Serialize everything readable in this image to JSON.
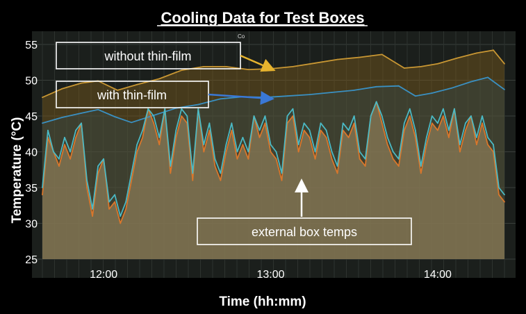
{
  "chart_data": {
    "type": "area",
    "title": "Cooling Data for Test Boxes",
    "xlabel": "Time (hh:mm)",
    "ylabel": "Temperature (°C)",
    "x_ticks": [
      "12:00",
      "13:00",
      "14:00"
    ],
    "y_ticks": [
      25,
      30,
      35,
      40,
      45,
      50,
      55
    ],
    "xlim": [
      "11:38",
      "14:24"
    ],
    "ylim": [
      25,
      56
    ],
    "grid": true,
    "colors": {
      "background": "#000000",
      "plot_bg": "#1b1f1c",
      "without": "#c99733",
      "with": "#3a90c2",
      "external_orange": "#d9772c",
      "external_cyan": "#4bb9c4",
      "area_fill": "#8a7b57"
    },
    "series": [
      {
        "x": [
          "11:38",
          "11:45",
          "11:52",
          "11:58",
          "12:05",
          "12:12",
          "12:20",
          "12:28",
          "12:36",
          "12:44",
          "12:52",
          "13:00",
          "13:08",
          "13:16",
          "13:24",
          "13:32",
          "13:40",
          "13:48",
          "13:54",
          "14:00",
          "14:07",
          "14:14",
          "14:20",
          "14:24"
        ],
        "values": [
          47.6,
          48.8,
          49.6,
          49.9,
          48.6,
          49.4,
          50.2,
          51.4,
          51.9,
          51.9,
          51.5,
          51.6,
          51.9,
          52.4,
          52.9,
          53.2,
          53.6,
          51.7,
          51.9,
          52.3,
          53.1,
          53.8,
          54.2,
          52.3
        ]
      },
      {
        "x": [
          "11:38",
          "11:45",
          "11:52",
          "11:58",
          "12:04",
          "12:10",
          "12:18",
          "12:26",
          "12:34",
          "12:42",
          "12:50",
          "12:58",
          "13:06",
          "13:14",
          "13:22",
          "13:30",
          "13:38",
          "13:46",
          "13:52",
          "13:58",
          "14:05",
          "14:12",
          "14:18",
          "14:24"
        ],
        "values": [
          44.0,
          44.8,
          45.4,
          45.9,
          44.9,
          44.1,
          45.1,
          46.1,
          46.6,
          47.4,
          47.7,
          47.6,
          47.8,
          48.0,
          48.3,
          48.6,
          49.1,
          49.2,
          47.8,
          48.2,
          48.9,
          49.8,
          50.4,
          48.7
        ]
      },
      {
        "x": [
          "11:38",
          "11:40",
          "11:42",
          "11:44",
          "11:46",
          "11:48",
          "11:50",
          "11:52",
          "11:54",
          "11:56",
          "11:58",
          "12:00",
          "12:02",
          "12:04",
          "12:06",
          "12:08",
          "12:10",
          "12:12",
          "12:14",
          "12:16",
          "12:18",
          "12:20",
          "12:22",
          "12:24",
          "12:26",
          "12:28",
          "12:30",
          "12:32",
          "12:34",
          "12:36",
          "12:38",
          "12:40",
          "12:42",
          "12:44",
          "12:46",
          "12:48",
          "12:50",
          "12:52",
          "12:54",
          "12:56",
          "12:58",
          "13:00",
          "13:02",
          "13:04",
          "13:06",
          "13:08",
          "13:10",
          "13:12",
          "13:14",
          "13:16",
          "13:18",
          "13:20",
          "13:22",
          "13:24",
          "13:26",
          "13:28",
          "13:30",
          "13:32",
          "13:34",
          "13:36",
          "13:38",
          "13:40",
          "13:42",
          "13:44",
          "13:46",
          "13:48",
          "13:50",
          "13:52",
          "13:54",
          "13:56",
          "13:58",
          "14:00",
          "14:02",
          "14:04",
          "14:06",
          "14:08",
          "14:10",
          "14:12",
          "14:14",
          "14:16",
          "14:18",
          "14:20",
          "14:22",
          "14:24"
        ],
        "values": [
          34,
          42,
          40,
          38,
          41,
          39,
          42,
          44,
          35,
          31,
          37,
          39,
          32,
          33,
          30,
          32,
          36,
          40,
          42,
          46,
          44,
          41,
          46,
          37,
          42,
          45,
          44,
          36,
          46,
          40,
          43,
          38,
          36,
          40,
          43,
          39,
          41,
          39,
          45,
          42,
          44,
          40,
          39,
          36,
          44,
          45,
          40,
          43,
          42,
          39,
          43,
          42,
          39,
          37,
          43,
          42,
          44,
          39,
          38,
          45,
          47,
          44,
          41,
          39,
          38,
          43,
          45,
          42,
          37,
          41,
          44,
          43,
          45,
          42,
          46,
          40,
          43,
          45,
          41,
          44,
          41,
          40,
          34,
          33
        ]
      },
      {
        "x": [
          "11:38",
          "11:40",
          "11:42",
          "11:44",
          "11:46",
          "11:48",
          "11:50",
          "11:52",
          "11:54",
          "11:56",
          "11:58",
          "12:00",
          "12:02",
          "12:04",
          "12:06",
          "12:08",
          "12:10",
          "12:12",
          "12:14",
          "12:16",
          "12:18",
          "12:20",
          "12:22",
          "12:24",
          "12:26",
          "12:28",
          "12:30",
          "12:32",
          "12:34",
          "12:36",
          "12:38",
          "12:40",
          "12:42",
          "12:44",
          "12:46",
          "12:48",
          "12:50",
          "12:52",
          "12:54",
          "12:56",
          "12:58",
          "13:00",
          "13:02",
          "13:04",
          "13:06",
          "13:08",
          "13:10",
          "13:12",
          "13:14",
          "13:16",
          "13:18",
          "13:20",
          "13:22",
          "13:24",
          "13:26",
          "13:28",
          "13:30",
          "13:32",
          "13:34",
          "13:36",
          "13:38",
          "13:40",
          "13:42",
          "13:44",
          "13:46",
          "13:48",
          "13:50",
          "13:52",
          "13:54",
          "13:56",
          "13:58",
          "14:00",
          "14:02",
          "14:04",
          "14:06",
          "14:08",
          "14:10",
          "14:12",
          "14:14",
          "14:16",
          "14:18",
          "14:20",
          "14:22",
          "14:24"
        ],
        "values": [
          35,
          43,
          40,
          39,
          42,
          40,
          43,
          44,
          36,
          32,
          38,
          39,
          33,
          34,
          31,
          33,
          37,
          41,
          43,
          46,
          45,
          42,
          46,
          38,
          43,
          46,
          45,
          37,
          46,
          41,
          44,
          39,
          37,
          41,
          44,
          40,
          42,
          40,
          45,
          43,
          45,
          41,
          40,
          37,
          45,
          46,
          41,
          44,
          43,
          40,
          44,
          43,
          40,
          38,
          44,
          43,
          45,
          40,
          39,
          45,
          47,
          45,
          42,
          40,
          39,
          44,
          46,
          43,
          38,
          42,
          45,
          44,
          46,
          43,
          46,
          41,
          44,
          45,
          42,
          45,
          42,
          41,
          35,
          34
        ]
      }
    ]
  },
  "annotations": {
    "without": "without thin-film",
    "with": "with thin-film",
    "external": "external box temps",
    "fragment": "Co"
  }
}
